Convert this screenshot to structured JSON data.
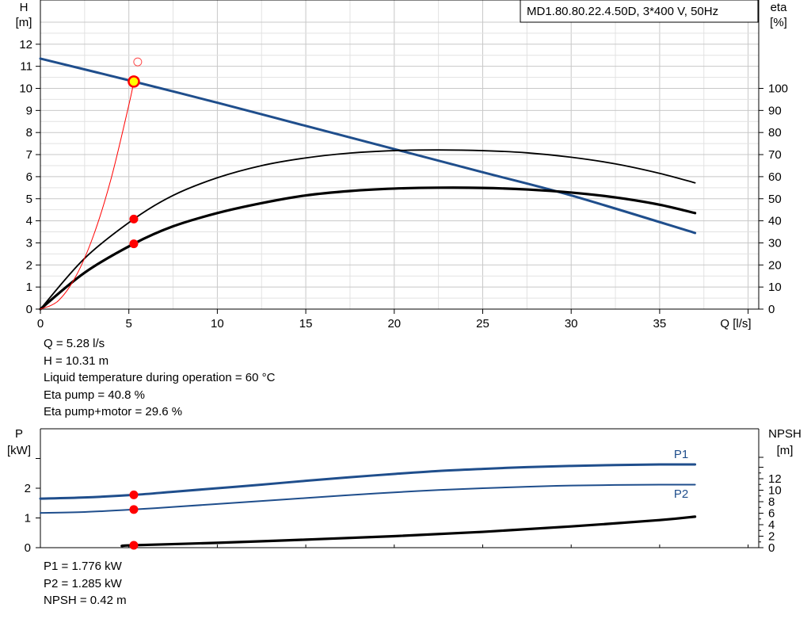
{
  "chart_data": [
    {
      "type": "line",
      "title": "MD1.80.80.22.4.50D, 3*400 V, 50Hz",
      "xlabel": "Q [l/s]",
      "ylabel_left": [
        "H",
        "[m]"
      ],
      "ylabel_right": [
        "eta",
        "[%]"
      ],
      "xlim": [
        0,
        40
      ],
      "ylim_left": [
        0,
        13
      ],
      "ylim_right_eta": [
        0,
        100
      ],
      "grid": true,
      "x_ticks": [
        "0",
        "5",
        "10",
        "15",
        "20",
        "25",
        "30",
        "35"
      ],
      "y_ticks_left": [
        "0",
        "1",
        "2",
        "3",
        "4",
        "5",
        "6",
        "7",
        "8",
        "9",
        "10",
        "11",
        "12"
      ],
      "y_ticks_right": [
        "0",
        "10",
        "20",
        "30",
        "40",
        "50",
        "60",
        "70",
        "80",
        "90",
        "100"
      ],
      "series": [
        {
          "color": "#1f4e8c",
          "x": [
            0,
            5.28,
            10,
            15,
            20,
            25,
            30,
            37
          ],
          "y": [
            11.35,
            10.31,
            9.35,
            8.3,
            7.25,
            6.2,
            5.15,
            3.45
          ],
          "axis": "H"
        },
        {
          "color": "#000000",
          "x": [
            0,
            2.5,
            5.28,
            7.5,
            10,
            12.5,
            15,
            17.5,
            20,
            22.5,
            25,
            27.5,
            30,
            32.5,
            35,
            37
          ],
          "y": [
            0,
            23,
            40.8,
            51.5,
            59.5,
            65,
            68.5,
            70.7,
            71.8,
            72.1,
            71.8,
            70.8,
            68.8,
            65.8,
            61.5,
            57.2
          ],
          "axis": "eta"
        },
        {
          "color": "#000000",
          "x": [
            0,
            2.5,
            5.28,
            7.5,
            10,
            12.5,
            15,
            17.5,
            20,
            22.5,
            25,
            27.5,
            30,
            32.5,
            35,
            37
          ],
          "y": [
            0,
            16.5,
            29.6,
            37.5,
            43.5,
            48.0,
            51.5,
            53.5,
            54.6,
            55.0,
            54.9,
            54.2,
            52.8,
            50.6,
            47.3,
            43.5
          ],
          "axis": "eta"
        },
        {
          "color": "#ff0000",
          "x": [
            0,
            1,
            2,
            3,
            4,
            5,
            5.28
          ],
          "y": [
            0,
            0.37,
            1.48,
            3.33,
            5.92,
            9.25,
            10.31
          ],
          "axis": "H"
        }
      ],
      "operating_point": {
        "x": 5.28,
        "H": 10.31,
        "eta_pump": 40.8,
        "eta_pump_motor": 29.6
      },
      "requested_point": {
        "x": 5.5,
        "H": 11.2
      }
    },
    {
      "type": "line",
      "ylabel_left": [
        "P",
        "[kW]"
      ],
      "ylabel_right": [
        "NPSH",
        "[m]"
      ],
      "xlim": [
        0,
        40
      ],
      "ylim_left": [
        0,
        3
      ],
      "ylim_right": [
        0,
        16
      ],
      "y_ticks_left": [
        "0",
        "1",
        "2"
      ],
      "y_ticks_right": [
        "0",
        "2",
        "4",
        "6",
        "8",
        "10",
        "12"
      ],
      "series": [
        {
          "name": "P1",
          "color": "#1f4e8c",
          "x": [
            0,
            2.5,
            5.28,
            7.5,
            10,
            12.5,
            15,
            17.5,
            20,
            22.5,
            25,
            27.5,
            30,
            32.5,
            35,
            37
          ],
          "y": [
            1.65,
            1.69,
            1.776,
            1.88,
            2.0,
            2.12,
            2.25,
            2.37,
            2.48,
            2.58,
            2.65,
            2.71,
            2.75,
            2.78,
            2.8,
            2.8
          ],
          "axis": "P"
        },
        {
          "name": "P2",
          "color": "#1f4e8c",
          "x": [
            0,
            2.5,
            5.28,
            7.5,
            10,
            12.5,
            15,
            17.5,
            20,
            22.5,
            25,
            27.5,
            30,
            32.5,
            35,
            37
          ],
          "y": [
            1.17,
            1.2,
            1.285,
            1.37,
            1.47,
            1.57,
            1.67,
            1.77,
            1.86,
            1.94,
            2.0,
            2.05,
            2.09,
            2.11,
            2.12,
            2.12
          ],
          "axis": "P"
        },
        {
          "color": "#000000",
          "x": [
            4.6,
            5.28,
            10,
            15,
            20,
            25,
            30,
            35,
            37
          ],
          "y": [
            0.3,
            0.42,
            0.85,
            1.4,
            2.0,
            2.75,
            3.7,
            4.8,
            5.4
          ],
          "axis": "NPSH"
        }
      ],
      "operating_point": {
        "x": 5.28,
        "P1": 1.776,
        "P2": 1.285,
        "NPSH": 0.42
      }
    }
  ],
  "readout_top": [
    "Q = 5.28 l/s",
    "H = 10.31 m",
    "Liquid temperature during operation = 60 °C",
    "Eta pump = 40.8 %",
    "Eta pump+motor = 29.6 %"
  ],
  "readout_bottom": [
    "P1 = 1.776 kW",
    "P2 = 1.285 kW",
    "NPSH = 0.42 m"
  ]
}
